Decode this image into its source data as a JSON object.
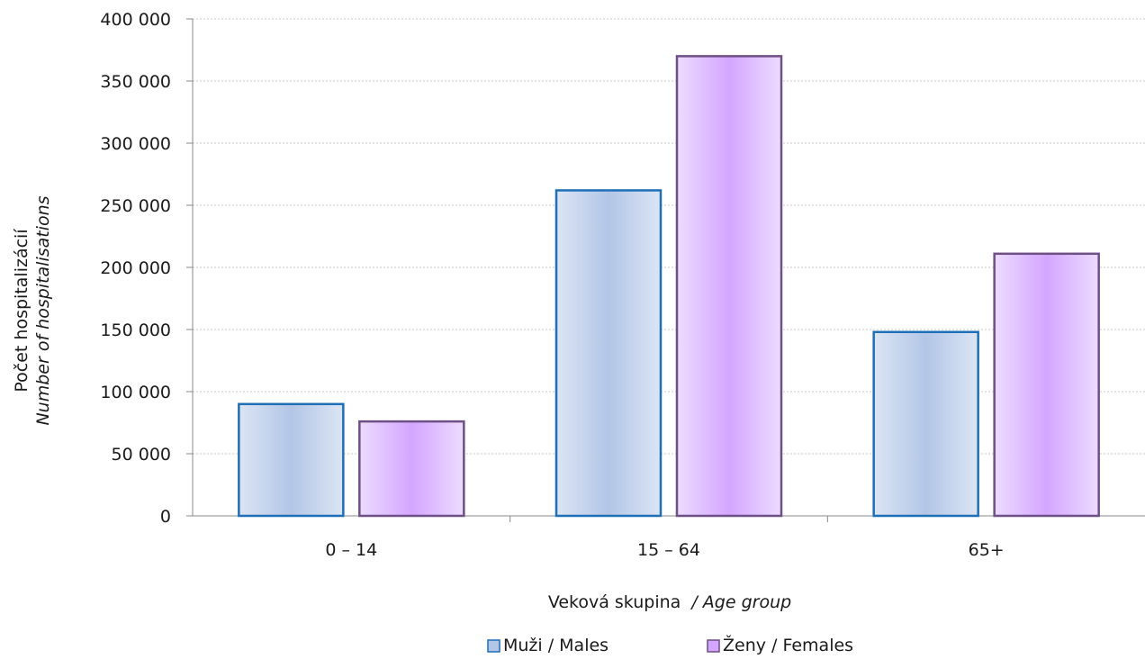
{
  "chart_data": {
    "type": "bar",
    "categories": [
      "0 – 14",
      "15 – 64",
      "65+"
    ],
    "series": [
      {
        "name": "Muži / Males",
        "values": [
          90000,
          262000,
          148000
        ],
        "color": "#b3c6e7",
        "stroke": "#1f6fb7"
      },
      {
        "name": "Ženy / Females",
        "values": [
          76000,
          370000,
          211000
        ],
        "color": "#d4a6ff",
        "stroke": "#6e4f86"
      }
    ],
    "ylim": [
      0,
      400000
    ],
    "yticks": [
      0,
      50000,
      100000,
      150000,
      200000,
      250000,
      300000,
      350000,
      400000
    ],
    "ytick_labels": [
      "0",
      "50 000",
      "100 000",
      "150 000",
      "200 000",
      "250 000",
      "300 000",
      "350 000",
      "400 000"
    ],
    "ylabel": "Počet hospitalizácií",
    "ylabel_en": "Number of hospitalisations",
    "xlabel": "Veková skupina",
    "xlabel_en": "/ Age group",
    "grid": true,
    "legend_position": "bottom-center"
  }
}
